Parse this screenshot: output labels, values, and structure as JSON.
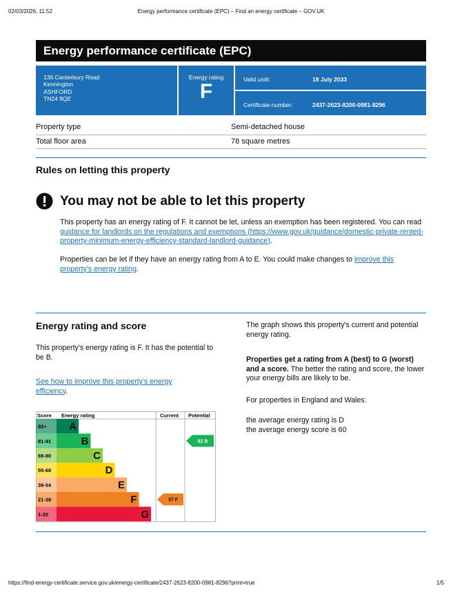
{
  "browser_header": {
    "datetime": "02/03/2026, 11:52",
    "page_title": "Energy performance certificate (EPC) – Find an energy certificate – GOV.UK"
  },
  "browser_footer": {
    "url": "https://find-energy-certificate.service.gov.uk/energy-certificate/2437-2623-8200-0981-8296?print=true",
    "page": "1/5"
  },
  "header": {
    "title": "Energy performance certificate (EPC)"
  },
  "summary": {
    "address": [
      "136 Canterbury Road",
      "Kennington",
      "ASHFORD",
      "TN24 9QE"
    ],
    "rating_label": "Energy rating",
    "rating": "F",
    "valid_until_label": "Valid until:",
    "valid_until": "18 July 2033",
    "certificate_label": "Certificate number:",
    "certificate_number": "2437-2623-8200-0981-8296"
  },
  "property": {
    "rows": [
      [
        "Property type",
        "Semi-detached house"
      ],
      [
        "Total floor area",
        "78 square metres"
      ]
    ]
  },
  "rules": {
    "heading": "Rules on letting this property",
    "warning": "You may not be able to let this property",
    "paragraph1": {
      "text": "This property has an energy rating of F. It cannot be let, unless an exemption has been registered. You can read ",
      "link": "guidance for landlords on the regulations and exemptions (https://www.gov.uk/guidance/domestic-private-rented-property-minimum-energy-efficiency-standard-landlord-guidance)",
      "end": "."
    },
    "paragraph2": {
      "text": "Properties can be let if they have an energy rating from A to E. You could make changes to ",
      "link": "improve this property's energy rating",
      "end": "."
    }
  },
  "rating_section": {
    "heading": "Energy rating and score",
    "text": "This property's energy rating is F. It has the potential to be B.",
    "link": "See how to improve this property's energy efficiency",
    "link_end": ".",
    "graph_text": "The graph shows this property's current and potential energy rating.",
    "scale_bold": "Properties get a rating from A (best) to G (worst) and a score.",
    "scale_text": " The better the rating and score, the lower your energy bills are likely to be.",
    "region": "For properties in England and Wales:",
    "average_rating": "the average energy rating is D",
    "average_score": "the average energy score is 60"
  },
  "rating_graph": {
    "headers": [
      "Score",
      "Energy rating",
      "Current",
      "Potential"
    ],
    "bands": [
      {
        "range": "92+",
        "letter": "A",
        "color": "#008054"
      },
      {
        "range": "81-91",
        "letter": "B",
        "color": "#19b459"
      },
      {
        "range": "69-80",
        "letter": "C",
        "color": "#8dce46"
      },
      {
        "range": "55-68",
        "letter": "D",
        "color": "#ffd500"
      },
      {
        "range": "39-54",
        "letter": "E",
        "color": "#fcaa65"
      },
      {
        "range": "21-38",
        "letter": "F",
        "color": "#ef8023"
      },
      {
        "range": "1-20",
        "letter": "G",
        "color": "#e9153b"
      }
    ],
    "current": {
      "score": 37,
      "band": "F"
    },
    "potential": {
      "score": 82,
      "band": "B"
    }
  }
}
